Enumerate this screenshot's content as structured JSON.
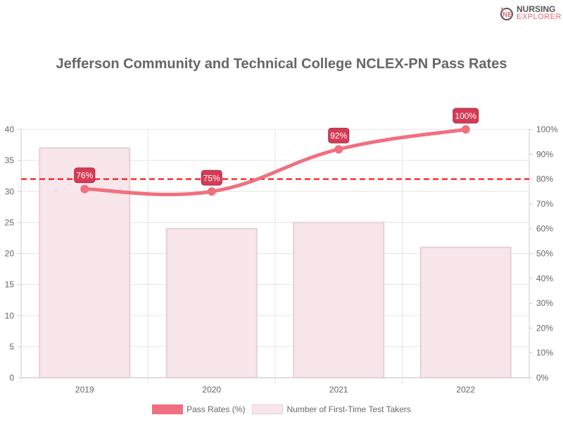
{
  "logo": {
    "line1": "NURSING",
    "line2": "EXPLORER"
  },
  "chart_data": {
    "type": "bar",
    "title": "Jefferson Community and Technical College NCLEX-PN Pass Rates",
    "categories": [
      "2019",
      "2020",
      "2021",
      "2022"
    ],
    "series": [
      {
        "name": "Pass Rates (%)",
        "type": "line",
        "axis": "right",
        "values": [
          76,
          75,
          92,
          100
        ],
        "labels": [
          "76%",
          "75%",
          "92%",
          "100%"
        ],
        "color": "#f07080"
      },
      {
        "name": "Number of First-Time Test Takers",
        "type": "bar",
        "axis": "left",
        "values": [
          37,
          24,
          25,
          21
        ],
        "color": "#f8e6eb",
        "border": "#e4d0d6"
      }
    ],
    "y_left": {
      "range": [
        0,
        40
      ],
      "ticks": [
        "0",
        "5",
        "10",
        "15",
        "20",
        "25",
        "30",
        "35",
        "40"
      ]
    },
    "y_right": {
      "range": [
        0,
        100
      ],
      "ticks": [
        "0%",
        "10%",
        "20%",
        "30%",
        "40%",
        "50%",
        "60%",
        "70%",
        "80%",
        "90%",
        "100%"
      ]
    },
    "reference_line": {
      "value": 80,
      "axis": "right",
      "color": "#ff0000",
      "style": "dashed"
    },
    "label_color": "#d63a55",
    "grid": true,
    "legend": "bottom"
  }
}
